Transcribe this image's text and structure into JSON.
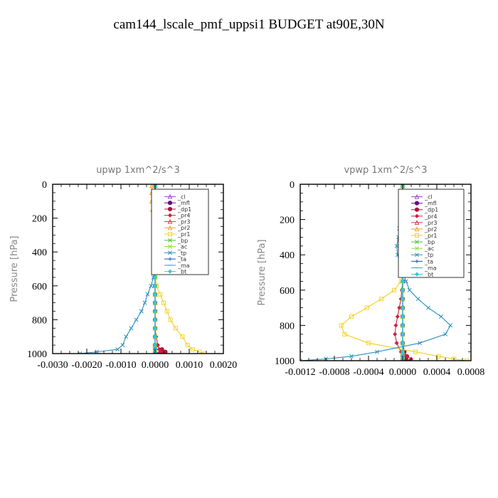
{
  "figure_title": "cam144_lscale_pmf_uppsi1  BUDGET at90E,30N",
  "legend_entries": [
    {
      "label": "_cl",
      "color": "#9b3fcc",
      "marker": "tri"
    },
    {
      "label": "_mfl",
      "color": "#6a0d7a",
      "marker": "circle"
    },
    {
      "label": "_dp1",
      "color": "#b0103a",
      "marker": "circle"
    },
    {
      "label": "_pr4",
      "color": "#d0203a",
      "marker": "diamond"
    },
    {
      "label": "_pr3",
      "color": "#e0304a",
      "marker": "tri"
    },
    {
      "label": "_pr2",
      "color": "#f0a020",
      "marker": "tri"
    },
    {
      "label": "_pr1",
      "color": "#f0d020",
      "marker": "square"
    },
    {
      "label": "_bp",
      "color": "#50c040",
      "marker": "x"
    },
    {
      "label": "_ac",
      "color": "#90e030",
      "marker": "x"
    },
    {
      "label": "_tp",
      "color": "#2a8fc0",
      "marker": "x"
    },
    {
      "label": "_ta",
      "color": "#1a50c0",
      "marker": "plus"
    },
    {
      "label": "_ma",
      "color": "#30a0d0",
      "marker": "dash"
    },
    {
      "label": "_bt",
      "color": "#20d0e0",
      "marker": "diamond"
    }
  ],
  "chart_data": [
    {
      "type": "line",
      "title": "upwp   1xm^2/s^3",
      "ylabel": "Pressure  [hPa]",
      "xlabel": "",
      "xlim": [
        -0.003,
        0.002
      ],
      "ylim": [
        1000,
        0
      ],
      "xticks": [
        -0.003,
        -0.002,
        -0.001,
        0.0,
        0.001,
        0.002
      ],
      "xticklabels": [
        "-0.0030",
        "-0.0020",
        "-0.0010",
        "0.0000",
        "0.0010",
        "0.0020"
      ],
      "yticks": [
        0,
        200,
        400,
        600,
        800,
        1000
      ],
      "yticklabels": [
        "0",
        "200",
        "400",
        "600",
        "800",
        "1000"
      ],
      "legend_position": "top-right",
      "pressure": [
        10,
        50,
        100,
        150,
        200,
        250,
        300,
        350,
        400,
        450,
        500,
        550,
        600,
        650,
        700,
        750,
        800,
        850,
        900,
        950,
        975,
        990,
        1000
      ],
      "series": [
        {
          "name": "_cl",
          "values": [
            0,
            0,
            0,
            0,
            0,
            0,
            0,
            0,
            0,
            0,
            0,
            0,
            0,
            0,
            0,
            0,
            0,
            0,
            0,
            0,
            0,
            0,
            0
          ]
        },
        {
          "name": "_mfl",
          "values": [
            0,
            0,
            0,
            0,
            0,
            0,
            0,
            0,
            0,
            0,
            0,
            0,
            0,
            0,
            0,
            0,
            0,
            0,
            0,
            0,
            0,
            0,
            0
          ]
        },
        {
          "name": "_dp1",
          "values": [
            0,
            0,
            0,
            0,
            0,
            0,
            0,
            0,
            0,
            0,
            0,
            0,
            0,
            0,
            0,
            0,
            0,
            0,
            0,
            0,
            0.0002,
            0.0003,
            0.0002
          ]
        },
        {
          "name": "_pr4",
          "values": [
            0,
            0,
            0,
            0,
            0,
            0,
            0,
            0,
            0,
            0,
            0,
            0,
            0,
            0,
            0,
            0,
            0,
            0,
            3e-05,
            8e-05,
            0.00012,
            0.00015,
            0.0001
          ]
        },
        {
          "name": "_pr3",
          "values": [
            0,
            0,
            0,
            0,
            0,
            0,
            0,
            0,
            0,
            0,
            0,
            0,
            0,
            0,
            0,
            0,
            0,
            0,
            0,
            0,
            0,
            0,
            0
          ]
        },
        {
          "name": "_pr2",
          "values": [
            -0.0001,
            -0.0001,
            -0.0001,
            -8e-05,
            -5e-05,
            -3e-05,
            0,
            0,
            0,
            0,
            0,
            0,
            0,
            0,
            0,
            0,
            0,
            0,
            0,
            0,
            0,
            0,
            0
          ]
        },
        {
          "name": "_pr1",
          "values": [
            0,
            0,
            0,
            0,
            0,
            0,
            0,
            0,
            0,
            0,
            0,
            0,
            4e-05,
            0.00015,
            0.00025,
            0.00035,
            0.00045,
            0.0006,
            0.0008,
            0.00095,
            0.0011,
            0.0013,
            0.00145
          ]
        },
        {
          "name": "_bp",
          "values": [
            0,
            0,
            0,
            0,
            0,
            0,
            0,
            0,
            0,
            0,
            0,
            0,
            0,
            0,
            0,
            0,
            0,
            0,
            0,
            0,
            0,
            0,
            0
          ]
        },
        {
          "name": "_ac",
          "values": [
            0,
            0,
            0,
            0,
            0,
            0,
            0,
            0,
            0,
            0,
            0,
            0,
            0,
            0,
            0,
            0,
            0,
            0,
            0,
            0,
            0,
            0,
            0
          ]
        },
        {
          "name": "_tp",
          "values": [
            0,
            0,
            0,
            0,
            0,
            0,
            0,
            0,
            0,
            0,
            0,
            -5e-05,
            -0.00012,
            -0.00022,
            -0.0003,
            -0.0004,
            -0.00055,
            -0.0007,
            -0.00085,
            -0.00095,
            -0.0011,
            -0.0017,
            -0.0022
          ]
        },
        {
          "name": "_ta",
          "values": [
            0,
            0,
            0,
            0,
            0,
            0,
            0,
            0,
            0,
            0,
            0,
            0,
            0,
            0,
            0,
            0,
            0,
            0,
            0,
            0,
            0,
            0,
            0
          ]
        },
        {
          "name": "_ma",
          "values": [
            0,
            0,
            0,
            0,
            0,
            0,
            0,
            0,
            0,
            0,
            0,
            0,
            0,
            0,
            0,
            0,
            0,
            0,
            0,
            0,
            0,
            0,
            0
          ]
        },
        {
          "name": "_bt",
          "values": [
            0,
            0,
            0,
            0,
            0,
            0,
            0,
            0,
            0,
            0,
            0,
            0,
            0,
            0,
            0,
            0,
            0,
            0,
            0,
            0,
            0,
            0,
            0
          ]
        }
      ]
    },
    {
      "type": "line",
      "title": "vpwp   1xm^2/s^3",
      "ylabel": "Pressure  [hPa]",
      "xlabel": "",
      "xlim": [
        -0.0012,
        0.0008
      ],
      "ylim": [
        1000,
        0
      ],
      "xticks": [
        -0.0012,
        -0.0008,
        -0.0004,
        0.0,
        0.0004,
        0.0008
      ],
      "xticklabels": [
        "-0.0012",
        "-0.0008",
        "-0.0004",
        "0.0000",
        "0.0004",
        "0.0008"
      ],
      "yticks": [
        0,
        200,
        400,
        600,
        800,
        1000
      ],
      "yticklabels": [
        "0",
        "200",
        "400",
        "600",
        "800",
        "1000"
      ],
      "legend_position": "top-right",
      "pressure": [
        10,
        50,
        100,
        150,
        200,
        250,
        300,
        350,
        400,
        450,
        500,
        550,
        600,
        650,
        700,
        750,
        800,
        850,
        900,
        950,
        975,
        990,
        1000
      ],
      "series": [
        {
          "name": "_cl",
          "values": [
            0,
            0,
            0,
            0,
            0,
            0,
            0,
            0,
            0,
            0,
            0,
            0,
            0,
            0,
            0,
            0,
            0,
            0,
            0,
            0,
            0,
            0,
            0
          ]
        },
        {
          "name": "_mfl",
          "values": [
            0,
            0,
            0,
            0,
            0,
            0,
            0,
            0,
            0,
            0,
            0,
            0,
            0,
            0,
            0,
            0,
            0,
            0,
            0,
            0,
            0,
            0,
            0
          ]
        },
        {
          "name": "_dp1",
          "values": [
            0,
            0,
            0,
            0,
            0,
            0,
            0,
            0,
            0,
            0,
            0,
            0,
            0,
            0,
            0,
            0,
            0,
            0,
            0,
            2e-05,
            5e-05,
            4e-05,
            2e-05
          ]
        },
        {
          "name": "_pr4",
          "values": [
            0,
            0,
            0,
            0,
            0,
            0,
            0,
            0,
            0,
            0,
            0,
            0,
            -1e-05,
            -2e-05,
            -4e-05,
            -6e-05,
            -8e-05,
            -9e-05,
            -7e-05,
            -2e-05,
            5e-05,
            0.0001,
            8e-05
          ]
        },
        {
          "name": "_pr3",
          "values": [
            0,
            0,
            0,
            0,
            0,
            0,
            0,
            0,
            0,
            0,
            0,
            0,
            0,
            0,
            0,
            0,
            0,
            0,
            0,
            0,
            0,
            0,
            0
          ]
        },
        {
          "name": "_pr2",
          "values": [
            0,
            0,
            0,
            0,
            0,
            0,
            0,
            0,
            0,
            0,
            0,
            0,
            0,
            0,
            0,
            0,
            0,
            0,
            0,
            0,
            0,
            0,
            0
          ]
        },
        {
          "name": "_pr1",
          "values": [
            0,
            0,
            0,
            0,
            0,
            0,
            0,
            0,
            0,
            0,
            0,
            -2e-05,
            -0.0001,
            -0.00025,
            -0.00042,
            -0.0006,
            -0.00072,
            -0.00068,
            -0.0004,
            0.00015,
            0.00042,
            0.0006,
            0.00075
          ]
        },
        {
          "name": "_bp",
          "values": [
            0,
            0,
            0,
            0,
            0,
            0,
            0,
            0,
            0,
            0,
            0,
            0,
            0,
            0,
            0,
            0,
            0,
            0,
            0,
            0,
            0,
            0,
            0
          ]
        },
        {
          "name": "_ac",
          "values": [
            0,
            0,
            0,
            0,
            0,
            0,
            0,
            0,
            0,
            0,
            0,
            0,
            0,
            0,
            0,
            0,
            0,
            0,
            0,
            0,
            0,
            0,
            0
          ]
        },
        {
          "name": "_tp",
          "values": [
            0,
            0,
            -1e-05,
            -2e-05,
            -3e-05,
            -4e-05,
            -5e-05,
            -7e-05,
            -6e-05,
            -3e-05,
            0,
            4e-05,
            8e-05,
            0.00018,
            0.0003,
            0.00045,
            0.00056,
            0.0005,
            0.0002,
            -0.0003,
            -0.0006,
            -0.0009,
            -0.0012
          ]
        },
        {
          "name": "_ta",
          "values": [
            0,
            0,
            0,
            0,
            0,
            0,
            0,
            0,
            0,
            0,
            0,
            0,
            0,
            0,
            0,
            0,
            0,
            0,
            0,
            0,
            0,
            0,
            0
          ]
        },
        {
          "name": "_ma",
          "values": [
            0,
            0,
            0,
            0,
            0,
            0,
            0,
            0,
            0,
            0,
            0,
            0,
            0,
            0,
            0,
            0,
            0,
            0,
            0,
            0,
            0,
            0,
            0
          ]
        },
        {
          "name": "_bt",
          "values": [
            0,
            0,
            0,
            0,
            0,
            0,
            0,
            0,
            0,
            0,
            0,
            0,
            0,
            0,
            0,
            0,
            0,
            0,
            0,
            0,
            0,
            0,
            0
          ]
        }
      ]
    }
  ]
}
